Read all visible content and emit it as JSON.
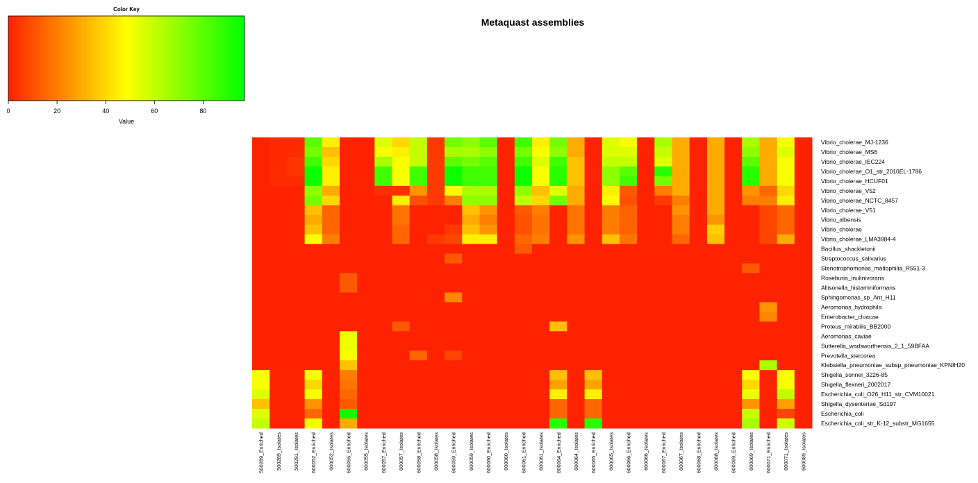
{
  "chart_data": {
    "type": "heatmap",
    "title": "Metaquast assemblies",
    "color_key": {
      "title": "Color Key",
      "xlabel": "Value",
      "ticks": [
        0,
        20,
        40,
        60,
        80
      ],
      "range": [
        0,
        97
      ],
      "colors": [
        "#ff2200",
        "#ffff00",
        "#00ff00"
      ]
    },
    "rows": [
      "Vibrio_cholerae_MJ-1236",
      "Vibrio_cholerae_MS6",
      "Vibrio_cholerae_IEC224",
      "Vibrio_cholerae_O1_str_2010EL-1786",
      "Vibrio_cholerae_HCUF01",
      "Vibrio_cholerae_V52",
      "Vibrio_cholerae_NCTC_8457",
      "Vibrio_cholerae_V51",
      "Vibrio_albensis",
      "Vibrio_cholerae",
      "Vibrio_cholerae_LMA3984-4",
      "Bacillus_shackletonii",
      "Streptococcus_salivarius",
      "Stenotrophomonas_maltophilia_R551-3",
      "Roseburia_inulinivorans",
      "Allisonella_histaminiformans",
      "Sphingomonas_sp_Ant_H11",
      "Aeromonas_hydrophila",
      "Enterobacter_cloacae",
      "Proteus_mirabilis_BB2000",
      "Aeromonas_caviae",
      "Sutterella_wadsworthensis_2_1_59BFAA",
      "Prevotella_stercorea",
      "Klebsiella_pneumoniae_subsp_pneumoniae_KPNIH20",
      "Shigella_sonnei_3226-85",
      "Shigella_flexneri_2002017",
      "Escherichia_coli_O26_H11_str_CVM10021",
      "Shigella_dysenteriae_Sd197",
      "Escherichia_coli",
      "Escherichia_coli_str_K-12_substr_MG1655"
    ],
    "columns": [
      "500289_Enriched",
      "500289_Isolates",
      "500291_Isolates",
      "600052_Enriched",
      "600052_Isolates",
      "600055_Enriched",
      "600055_Isolates",
      "600057_Enriched",
      "600057_Isolates",
      "600058_Enriched",
      "600058_Isolates",
      "600059_Enriched",
      "600059_Isolates",
      "600060_Enriched",
      "600060_Isolates",
      "600061_Enriched",
      "600061_Isolates",
      "600064_Enriched",
      "600064_Isolates",
      "600065_Enriched",
      "600065_Isolates",
      "600066_Enriched",
      "600066_Isolates",
      "600067_Enriched",
      "600067_Isolates",
      "600068_Enriched",
      "600068_Isolates",
      "600069_Enriched",
      "600069_Isolates",
      "600071_Enriched",
      "600071_Isolates",
      "600089_Isolates"
    ],
    "values": [
      [
        0,
        2,
        2,
        80,
        45,
        0,
        0,
        55,
        40,
        60,
        5,
        75,
        70,
        80,
        0,
        85,
        45,
        75,
        30,
        0,
        55,
        50,
        0,
        65,
        30,
        0,
        30,
        0,
        65,
        30,
        50,
        0
      ],
      [
        0,
        2,
        2,
        75,
        35,
        0,
        0,
        50,
        45,
        60,
        5,
        65,
        65,
        70,
        0,
        75,
        50,
        70,
        30,
        0,
        55,
        55,
        0,
        60,
        30,
        0,
        30,
        0,
        70,
        30,
        55,
        0
      ],
      [
        0,
        2,
        4,
        85,
        40,
        0,
        0,
        65,
        50,
        60,
        5,
        80,
        75,
        80,
        0,
        85,
        55,
        85,
        35,
        0,
        60,
        60,
        0,
        55,
        30,
        0,
        30,
        0,
        80,
        30,
        50,
        0
      ],
      [
        0,
        2,
        4,
        95,
        45,
        0,
        0,
        85,
        50,
        85,
        5,
        95,
        85,
        85,
        0,
        95,
        50,
        90,
        35,
        0,
        70,
        80,
        0,
        90,
        30,
        0,
        30,
        0,
        90,
        30,
        50,
        0
      ],
      [
        0,
        2,
        2,
        95,
        45,
        0,
        0,
        85,
        50,
        85,
        5,
        95,
        85,
        85,
        0,
        95,
        50,
        90,
        35,
        0,
        70,
        85,
        0,
        75,
        30,
        0,
        30,
        0,
        90,
        30,
        50,
        0
      ],
      [
        0,
        0,
        0,
        70,
        30,
        0,
        0,
        3,
        3,
        25,
        5,
        50,
        65,
        65,
        0,
        70,
        35,
        55,
        30,
        0,
        45,
        12,
        0,
        20,
        30,
        0,
        30,
        0,
        25,
        15,
        40,
        0
      ],
      [
        0,
        0,
        0,
        75,
        40,
        0,
        0,
        0,
        45,
        10,
        5,
        20,
        70,
        70,
        0,
        60,
        40,
        75,
        30,
        0,
        50,
        10,
        0,
        5,
        20,
        0,
        30,
        0,
        20,
        20,
        45,
        0
      ],
      [
        0,
        0,
        0,
        35,
        15,
        0,
        0,
        0,
        18,
        0,
        0,
        0,
        35,
        25,
        0,
        12,
        20,
        0,
        18,
        0,
        20,
        14,
        0,
        0,
        25,
        0,
        30,
        0,
        0,
        8,
        15,
        0
      ],
      [
        0,
        0,
        0,
        30,
        15,
        0,
        0,
        0,
        18,
        0,
        0,
        0,
        30,
        20,
        0,
        10,
        18,
        0,
        18,
        0,
        20,
        14,
        0,
        0,
        20,
        0,
        25,
        0,
        0,
        8,
        15,
        0
      ],
      [
        0,
        0,
        0,
        35,
        15,
        0,
        0,
        0,
        15,
        0,
        0,
        5,
        35,
        25,
        0,
        10,
        18,
        0,
        18,
        0,
        20,
        14,
        0,
        0,
        20,
        0,
        38,
        0,
        0,
        8,
        15,
        0
      ],
      [
        0,
        0,
        0,
        50,
        20,
        0,
        0,
        0,
        15,
        0,
        5,
        8,
        45,
        45,
        0,
        15,
        20,
        0,
        25,
        0,
        35,
        18,
        0,
        0,
        15,
        0,
        35,
        0,
        0,
        8,
        30,
        0
      ],
      [
        0,
        0,
        0,
        0,
        0,
        0,
        0,
        0,
        0,
        0,
        0,
        0,
        0,
        0,
        0,
        12,
        0,
        0,
        0,
        0,
        0,
        0,
        0,
        0,
        0,
        0,
        0,
        0,
        0,
        0,
        0,
        0
      ],
      [
        0,
        0,
        0,
        0,
        0,
        0,
        0,
        0,
        0,
        0,
        0,
        12,
        0,
        0,
        0,
        0,
        0,
        0,
        0,
        0,
        0,
        0,
        0,
        0,
        0,
        0,
        0,
        0,
        0,
        0,
        0,
        0
      ],
      [
        0,
        0,
        0,
        0,
        0,
        0,
        0,
        0,
        0,
        0,
        0,
        0,
        0,
        0,
        0,
        0,
        0,
        0,
        0,
        0,
        0,
        0,
        0,
        0,
        0,
        0,
        0,
        0,
        12,
        0,
        0,
        0
      ],
      [
        0,
        0,
        0,
        0,
        0,
        12,
        0,
        0,
        0,
        0,
        0,
        0,
        0,
        0,
        0,
        0,
        0,
        0,
        0,
        0,
        0,
        0,
        0,
        0,
        0,
        0,
        0,
        0,
        0,
        0,
        0,
        0
      ],
      [
        0,
        0,
        0,
        0,
        0,
        12,
        0,
        0,
        0,
        0,
        0,
        0,
        0,
        0,
        0,
        0,
        0,
        0,
        0,
        0,
        0,
        0,
        0,
        0,
        0,
        0,
        0,
        0,
        0,
        0,
        0,
        0
      ],
      [
        0,
        0,
        0,
        0,
        0,
        0,
        0,
        0,
        0,
        0,
        0,
        22,
        0,
        0,
        0,
        0,
        0,
        0,
        0,
        0,
        0,
        0,
        0,
        0,
        0,
        0,
        0,
        0,
        0,
        0,
        0,
        0
      ],
      [
        0,
        0,
        0,
        0,
        0,
        0,
        0,
        0,
        0,
        0,
        0,
        0,
        0,
        0,
        0,
        0,
        0,
        0,
        0,
        0,
        0,
        0,
        0,
        0,
        0,
        0,
        0,
        0,
        0,
        25,
        0,
        0
      ],
      [
        0,
        0,
        0,
        0,
        0,
        0,
        0,
        0,
        0,
        0,
        0,
        0,
        0,
        0,
        0,
        0,
        0,
        0,
        0,
        0,
        0,
        0,
        0,
        0,
        0,
        0,
        0,
        0,
        0,
        22,
        0,
        0
      ],
      [
        0,
        0,
        0,
        0,
        0,
        0,
        0,
        0,
        12,
        0,
        0,
        0,
        0,
        0,
        0,
        0,
        0,
        35,
        0,
        0,
        0,
        0,
        0,
        0,
        0,
        0,
        0,
        0,
        0,
        0,
        0,
        0
      ],
      [
        0,
        0,
        0,
        0,
        0,
        52,
        0,
        0,
        0,
        0,
        0,
        0,
        0,
        0,
        0,
        0,
        0,
        0,
        0,
        0,
        0,
        0,
        0,
        0,
        0,
        0,
        0,
        0,
        0,
        0,
        0,
        0
      ],
      [
        0,
        0,
        0,
        0,
        0,
        52,
        0,
        0,
        0,
        0,
        0,
        0,
        0,
        0,
        0,
        0,
        0,
        0,
        0,
        0,
        0,
        0,
        0,
        0,
        0,
        0,
        0,
        0,
        0,
        0,
        0,
        0
      ],
      [
        0,
        0,
        0,
        0,
        0,
        50,
        0,
        0,
        0,
        15,
        0,
        8,
        0,
        0,
        0,
        0,
        0,
        0,
        0,
        0,
        0,
        0,
        0,
        0,
        0,
        0,
        0,
        0,
        0,
        0,
        0,
        0
      ],
      [
        0,
        0,
        0,
        0,
        0,
        35,
        0,
        0,
        0,
        0,
        0,
        0,
        0,
        0,
        0,
        0,
        0,
        0,
        0,
        0,
        0,
        0,
        0,
        0,
        0,
        0,
        0,
        0,
        0,
        65,
        0,
        0
      ],
      [
        50,
        0,
        0,
        50,
        0,
        20,
        0,
        0,
        0,
        0,
        0,
        0,
        0,
        0,
        0,
        0,
        0,
        35,
        0,
        35,
        0,
        0,
        0,
        0,
        0,
        0,
        0,
        0,
        48,
        0,
        48,
        0
      ],
      [
        50,
        0,
        0,
        40,
        0,
        18,
        0,
        0,
        0,
        0,
        0,
        0,
        0,
        0,
        0,
        0,
        0,
        28,
        0,
        28,
        0,
        0,
        0,
        0,
        0,
        0,
        0,
        0,
        40,
        0,
        50,
        0
      ],
      [
        55,
        0,
        0,
        50,
        0,
        15,
        0,
        0,
        0,
        0,
        0,
        0,
        0,
        0,
        0,
        0,
        0,
        45,
        0,
        45,
        0,
        0,
        0,
        0,
        0,
        0,
        0,
        0,
        52,
        0,
        60,
        0
      ],
      [
        35,
        0,
        0,
        25,
        0,
        12,
        0,
        0,
        0,
        0,
        0,
        0,
        0,
        0,
        0,
        0,
        0,
        15,
        0,
        15,
        0,
        0,
        0,
        0,
        0,
        0,
        0,
        0,
        25,
        0,
        28,
        0
      ],
      [
        55,
        0,
        0,
        15,
        0,
        95,
        0,
        0,
        0,
        0,
        0,
        0,
        0,
        0,
        0,
        0,
        0,
        15,
        0,
        15,
        0,
        0,
        0,
        0,
        0,
        0,
        0,
        0,
        60,
        0,
        8,
        0
      ],
      [
        60,
        0,
        0,
        50,
        0,
        30,
        0,
        0,
        0,
        0,
        0,
        0,
        0,
        0,
        0,
        0,
        0,
        90,
        0,
        90,
        0,
        0,
        0,
        0,
        0,
        0,
        0,
        0,
        65,
        0,
        58,
        0
      ]
    ]
  }
}
